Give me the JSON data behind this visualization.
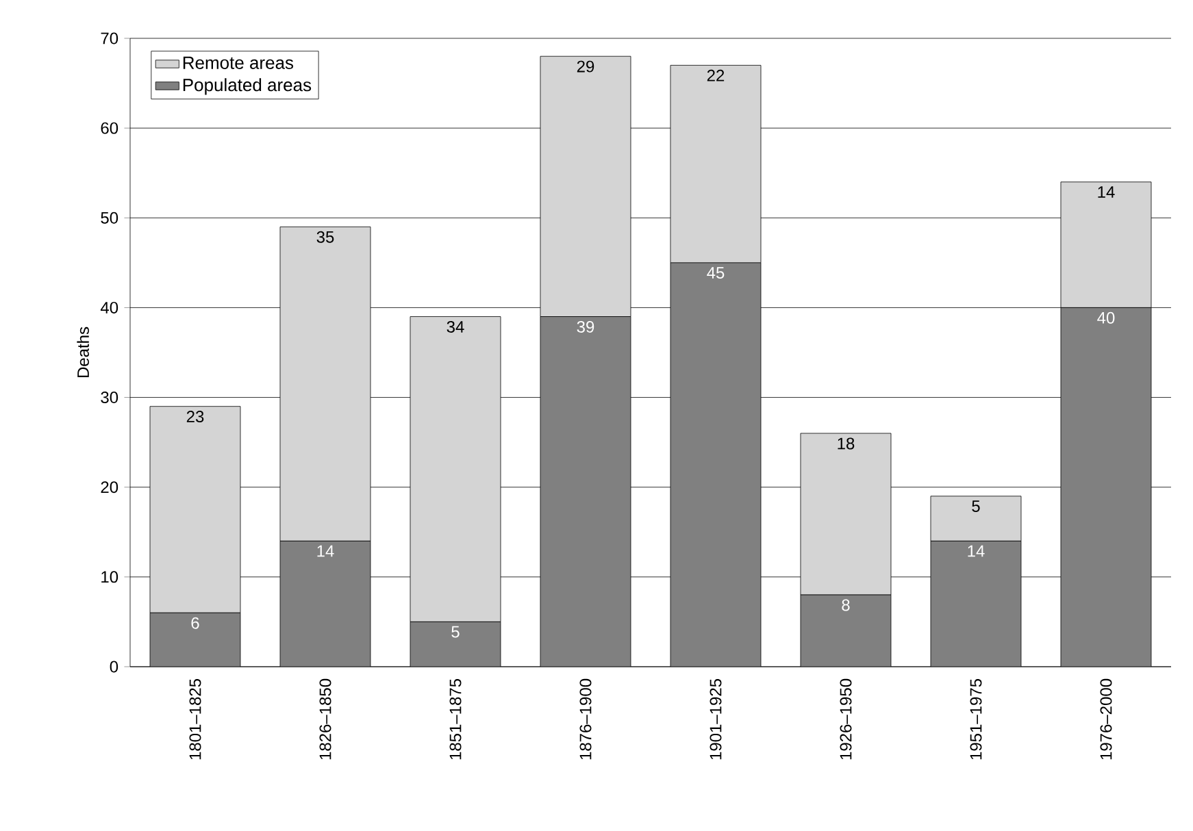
{
  "chart_data": {
    "type": "bar",
    "ylabel": "Deaths",
    "categories": [
      "1801–1825",
      "1826–1850",
      "1851–1875",
      "1876–1900",
      "1901–1925",
      "1926–1950",
      "1951–1975",
      "1976–2000"
    ],
    "series": [
      {
        "name": "Populated areas",
        "color": "#808080",
        "values": [
          6,
          14,
          5,
          39,
          45,
          8,
          14,
          40
        ]
      },
      {
        "name": "Remote areas",
        "color": "#d4d4d4",
        "values": [
          23,
          35,
          34,
          29,
          22,
          18,
          5,
          14
        ]
      }
    ],
    "stacked": true,
    "ylim": [
      0,
      70
    ],
    "yticks": [
      0,
      10,
      20,
      30,
      40,
      50,
      60,
      70
    ],
    "grid": "y",
    "legend": "top left",
    "data_labels": true
  }
}
